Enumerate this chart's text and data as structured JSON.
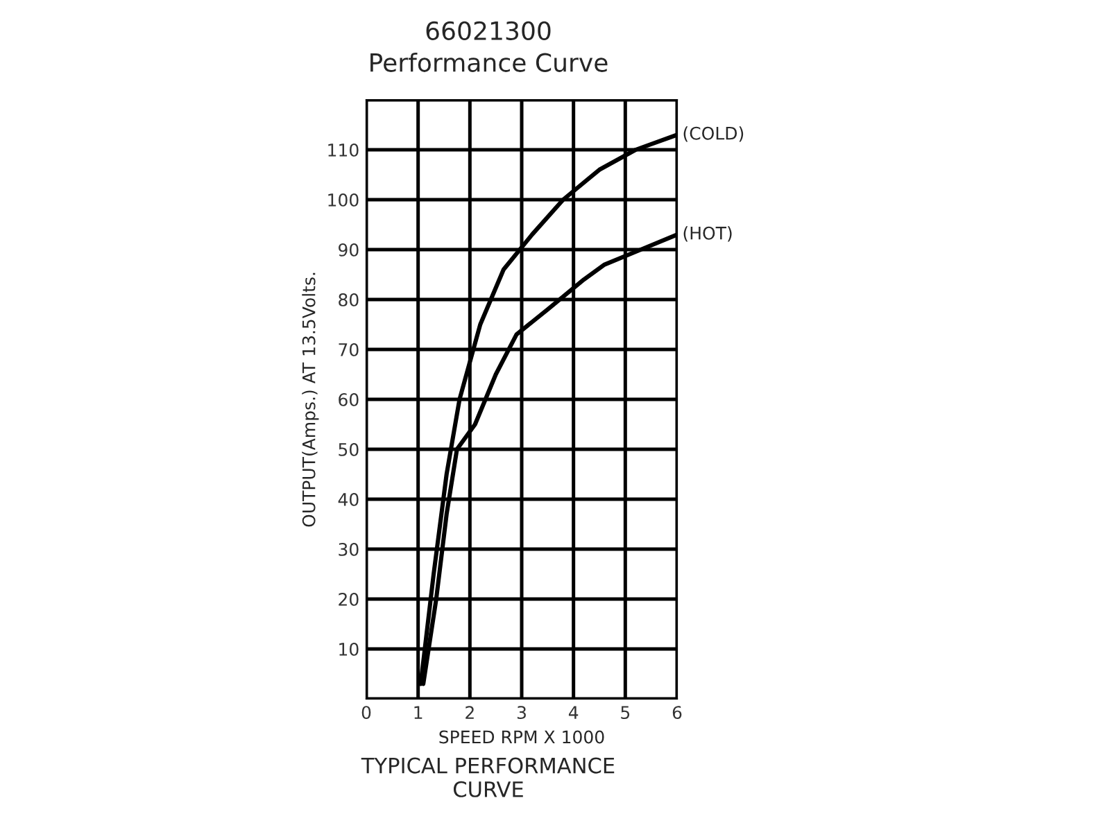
{
  "chart_data": {
    "type": "line",
    "title": "66021300",
    "subtitle": "Performance Curve",
    "xlabel": "SPEED RPM X 1000",
    "ylabel": "OUTPUT(Amps.) AT 13.5Volts.",
    "annotations": [
      "TYPICAL PERFORMANCE\nCURVE"
    ],
    "xlim": [
      0,
      6
    ],
    "ylim": [
      0,
      120
    ],
    "xticks": [
      0,
      1,
      2,
      3,
      4,
      5,
      6
    ],
    "yticks": [
      {
        "value": 0,
        "label": null
      },
      10,
      20,
      30,
      40,
      50,
      60,
      70,
      80,
      90,
      100,
      110,
      {
        "value": 120,
        "label": null
      }
    ],
    "grid": true,
    "legend": false,
    "series": [
      {
        "name": "(COLD)",
        "color": "#000000",
        "x": [
          1.05,
          1.3,
          1.55,
          1.8,
          2.2,
          2.65,
          3.2,
          3.8,
          4.5,
          5.2,
          6
        ],
        "values": [
          3,
          25,
          45,
          60,
          75,
          86,
          93,
          100,
          106,
          110,
          113
        ]
      },
      {
        "name": "(HOT)",
        "color": "#000000",
        "x": [
          1.1,
          1.35,
          1.55,
          1.75,
          2.1,
          2.5,
          2.9,
          3.5,
          4.2,
          4.6,
          5.3,
          6
        ],
        "values": [
          3,
          20,
          37,
          50,
          55,
          65,
          73,
          78,
          84,
          87,
          90,
          93
        ]
      }
    ]
  }
}
